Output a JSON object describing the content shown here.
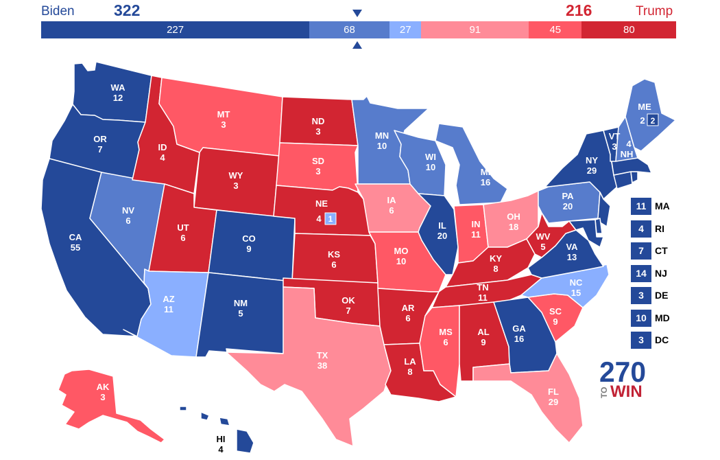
{
  "header": {
    "left_name": "Biden",
    "left_votes": "322",
    "right_name": "Trump",
    "right_votes": "216"
  },
  "bar": [
    {
      "label": "227",
      "value": 227,
      "color": "#244999"
    },
    {
      "label": "68",
      "value": 68,
      "color": "#577ccc"
    },
    {
      "label": "27",
      "value": 27,
      "color": "#8aafff"
    },
    {
      "label": "91",
      "value": 91,
      "color": "#ff8b98"
    },
    {
      "label": "45",
      "value": 45,
      "color": "#ff5865"
    },
    {
      "label": "80",
      "value": 80,
      "color": "#d22532"
    }
  ],
  "colors": {
    "safe_d": "#244999",
    "likely_d": "#577ccc",
    "lean_d": "#8aafff",
    "lean_r": "#ff8b98",
    "likely_r": "#ff5865",
    "safe_r": "#d22532",
    "left_name": "#244999",
    "right_name": "#d22532",
    "arrow": "#244999"
  },
  "states": {
    "WA": {
      "abbr": "WA",
      "ev": "12",
      "rating": "safe_d"
    },
    "OR": {
      "abbr": "OR",
      "ev": "7",
      "rating": "safe_d"
    },
    "CA": {
      "abbr": "CA",
      "ev": "55",
      "rating": "safe_d"
    },
    "NV": {
      "abbr": "NV",
      "ev": "6",
      "rating": "likely_d"
    },
    "ID": {
      "abbr": "ID",
      "ev": "4",
      "rating": "safe_r"
    },
    "MT": {
      "abbr": "MT",
      "ev": "3",
      "rating": "likely_r"
    },
    "WY": {
      "abbr": "WY",
      "ev": "3",
      "rating": "safe_r"
    },
    "UT": {
      "abbr": "UT",
      "ev": "6",
      "rating": "safe_r"
    },
    "AZ": {
      "abbr": "AZ",
      "ev": "11",
      "rating": "lean_d"
    },
    "CO": {
      "abbr": "CO",
      "ev": "9",
      "rating": "safe_d"
    },
    "NM": {
      "abbr": "NM",
      "ev": "5",
      "rating": "safe_d"
    },
    "ND": {
      "abbr": "ND",
      "ev": "3",
      "rating": "safe_r"
    },
    "SD": {
      "abbr": "SD",
      "ev": "3",
      "rating": "likely_r"
    },
    "NE": {
      "abbr": "NE",
      "ev": "4",
      "rating": "safe_r"
    },
    "NE2": {
      "ev": "1",
      "rating": "lean_d"
    },
    "KS": {
      "abbr": "KS",
      "ev": "6",
      "rating": "safe_r"
    },
    "OK": {
      "abbr": "OK",
      "ev": "7",
      "rating": "safe_r"
    },
    "TX": {
      "abbr": "TX",
      "ev": "38",
      "rating": "lean_r"
    },
    "MN": {
      "abbr": "MN",
      "ev": "10",
      "rating": "likely_d"
    },
    "IA": {
      "abbr": "IA",
      "ev": "6",
      "rating": "lean_r"
    },
    "MO": {
      "abbr": "MO",
      "ev": "10",
      "rating": "likely_r"
    },
    "AR": {
      "abbr": "AR",
      "ev": "6",
      "rating": "safe_r"
    },
    "LA": {
      "abbr": "LA",
      "ev": "8",
      "rating": "safe_r"
    },
    "WI": {
      "abbr": "WI",
      "ev": "10",
      "rating": "likely_d"
    },
    "IL": {
      "abbr": "IL",
      "ev": "20",
      "rating": "safe_d"
    },
    "MI": {
      "abbr": "MI",
      "ev": "16",
      "rating": "likely_d"
    },
    "IN": {
      "abbr": "IN",
      "ev": "11",
      "rating": "likely_r"
    },
    "OH": {
      "abbr": "OH",
      "ev": "18",
      "rating": "lean_r"
    },
    "KY": {
      "abbr": "KY",
      "ev": "8",
      "rating": "safe_r"
    },
    "TN": {
      "abbr": "TN",
      "ev": "11",
      "rating": "safe_r"
    },
    "MS": {
      "abbr": "MS",
      "ev": "6",
      "rating": "likely_r"
    },
    "AL": {
      "abbr": "AL",
      "ev": "9",
      "rating": "safe_r"
    },
    "GA": {
      "abbr": "GA",
      "ev": "16",
      "rating": "safe_d"
    },
    "FL": {
      "abbr": "FL",
      "ev": "29",
      "rating": "lean_r"
    },
    "SC": {
      "abbr": "SC",
      "ev": "9",
      "rating": "likely_r"
    },
    "NC": {
      "abbr": "NC",
      "ev": "15",
      "rating": "lean_d"
    },
    "VA": {
      "abbr": "VA",
      "ev": "13",
      "rating": "safe_d"
    },
    "WV": {
      "abbr": "WV",
      "ev": "5",
      "rating": "safe_r"
    },
    "PA": {
      "abbr": "PA",
      "ev": "20",
      "rating": "likely_d"
    },
    "NY": {
      "abbr": "NY",
      "ev": "29",
      "rating": "safe_d"
    },
    "VT": {
      "abbr": "VT",
      "ev": "3",
      "rating": "safe_d"
    },
    "NH": {
      "abbr": "NH",
      "ev": "4",
      "rating": "likely_d"
    },
    "ME": {
      "abbr": "ME",
      "ev": "2",
      "rating": "likely_d"
    },
    "ME2": {
      "ev": "2",
      "rating": "safe_d"
    },
    "MA": {
      "abbr": "MA",
      "ev": "11",
      "rating": "safe_d"
    },
    "RI": {
      "abbr": "RI",
      "ev": "4",
      "rating": "safe_d"
    },
    "CT": {
      "abbr": "CT",
      "ev": "7",
      "rating": "safe_d"
    },
    "NJ": {
      "abbr": "NJ",
      "ev": "14",
      "rating": "safe_d"
    },
    "DE": {
      "abbr": "DE",
      "ev": "3",
      "rating": "safe_d"
    },
    "MD": {
      "abbr": "MD",
      "ev": "10",
      "rating": "safe_d"
    },
    "DC": {
      "abbr": "DC",
      "ev": "3",
      "rating": "safe_d"
    },
    "AK": {
      "abbr": "AK",
      "ev": "3",
      "rating": "likely_r"
    },
    "HI": {
      "abbr": "HI",
      "ev": "4",
      "rating": "safe_d"
    }
  },
  "small_state_boxes": [
    "MA",
    "RI",
    "CT",
    "NJ",
    "DE",
    "MD",
    "DC"
  ],
  "logo": {
    "number": "270",
    "prefix": "TO",
    "suffix": "WIN",
    "number_color": "#244999",
    "prefix_color": "#7a7a7a",
    "suffix_color": "#c12235"
  }
}
